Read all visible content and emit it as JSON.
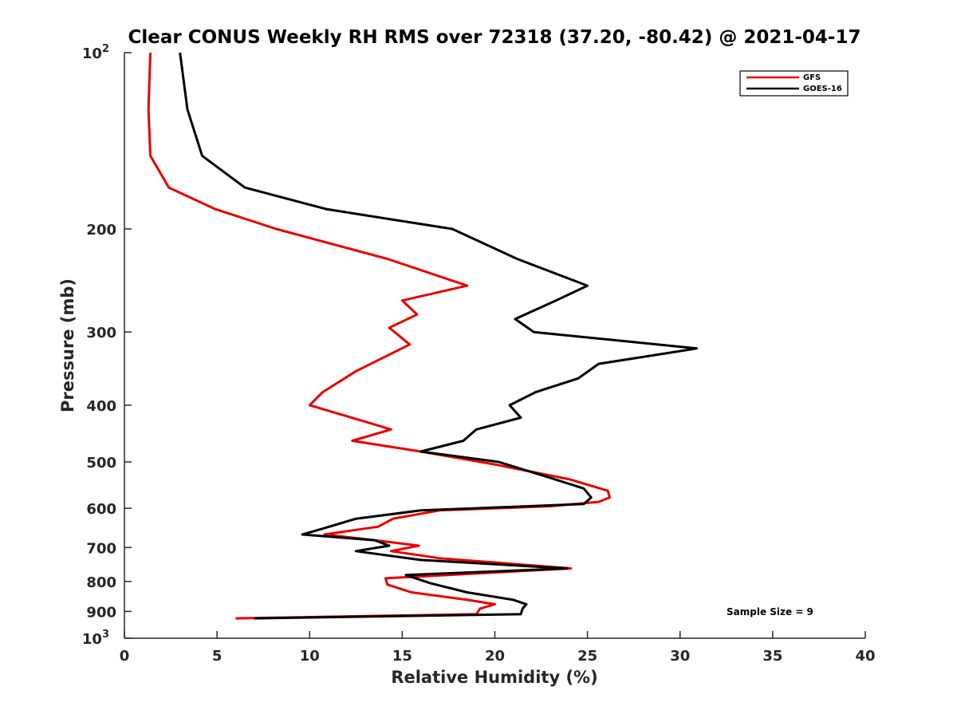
{
  "chart_data": {
    "type": "line",
    "title": "Clear CONUS Weekly RH RMS over 72318 (37.20, -80.42) @ 2021-04-17",
    "xlabel": "Relative Humidity (%)",
    "ylabel": "Pressure (mb)",
    "xlim": [
      0,
      40
    ],
    "ylim": [
      100,
      1000
    ],
    "y_scale": "log",
    "y_reversed": true,
    "x_ticks": [
      "0",
      "5",
      "10",
      "15",
      "20",
      "25",
      "30",
      "35",
      "40"
    ],
    "y_ticks": [
      {
        "value": 100,
        "base": "10",
        "exp": "2"
      },
      {
        "value": 200,
        "label": "200"
      },
      {
        "value": 300,
        "label": "300"
      },
      {
        "value": 400,
        "label": "400"
      },
      {
        "value": 500,
        "label": "500"
      },
      {
        "value": 600,
        "label": "600"
      },
      {
        "value": 700,
        "label": "700"
      },
      {
        "value": 800,
        "label": "800"
      },
      {
        "value": 900,
        "label": "900"
      },
      {
        "value": 1000,
        "base": "10",
        "exp": "3"
      }
    ],
    "grid": false,
    "legend_position": "top-right",
    "annotation": "Sample Size = 9",
    "series": [
      {
        "name": "GFS",
        "color": "#e60000",
        "points": [
          [
            1.4,
            100
          ],
          [
            1.3,
            125
          ],
          [
            1.4,
            150
          ],
          [
            2.4,
            170
          ],
          [
            4.9,
            185
          ],
          [
            8.2,
            200
          ],
          [
            14.2,
            225
          ],
          [
            18.5,
            250
          ],
          [
            15.0,
            265
          ],
          [
            15.8,
            280
          ],
          [
            14.3,
            295
          ],
          [
            15.4,
            315
          ],
          [
            12.5,
            350
          ],
          [
            10.7,
            380
          ],
          [
            10.0,
            400
          ],
          [
            12.8,
            425
          ],
          [
            14.4,
            440
          ],
          [
            12.3,
            460
          ],
          [
            16.0,
            480
          ],
          [
            20.0,
            505
          ],
          [
            24.0,
            535
          ],
          [
            26.1,
            560
          ],
          [
            26.2,
            575
          ],
          [
            25.6,
            585
          ],
          [
            23.0,
            595
          ],
          [
            17.0,
            605
          ],
          [
            14.5,
            625
          ],
          [
            13.7,
            645
          ],
          [
            10.8,
            665
          ],
          [
            13.5,
            680
          ],
          [
            15.9,
            695
          ],
          [
            14.4,
            710
          ],
          [
            17.0,
            730
          ],
          [
            24.1,
            760
          ],
          [
            14.1,
            790
          ],
          [
            14.2,
            810
          ],
          [
            15.5,
            835
          ],
          [
            18.5,
            860
          ],
          [
            20.0,
            875
          ],
          [
            19.2,
            890
          ],
          [
            19.0,
            910
          ],
          [
            6.0,
            925
          ]
        ]
      },
      {
        "name": "GOES-16",
        "color": "#000000",
        "points": [
          [
            3.0,
            100
          ],
          [
            3.4,
            125
          ],
          [
            4.2,
            150
          ],
          [
            6.5,
            170
          ],
          [
            10.9,
            185
          ],
          [
            17.7,
            200
          ],
          [
            21.2,
            225
          ],
          [
            25.0,
            250
          ],
          [
            23.3,
            265
          ],
          [
            21.1,
            285
          ],
          [
            22.1,
            300
          ],
          [
            30.9,
            320
          ],
          [
            25.6,
            340
          ],
          [
            24.5,
            360
          ],
          [
            22.2,
            380
          ],
          [
            20.8,
            400
          ],
          [
            21.4,
            420
          ],
          [
            19.0,
            440
          ],
          [
            18.3,
            460
          ],
          [
            16.0,
            480
          ],
          [
            20.2,
            500
          ],
          [
            22.8,
            530
          ],
          [
            24.8,
            555
          ],
          [
            25.2,
            575
          ],
          [
            24.8,
            590
          ],
          [
            16.0,
            605
          ],
          [
            12.5,
            625
          ],
          [
            10.7,
            650
          ],
          [
            9.6,
            665
          ],
          [
            13.5,
            680
          ],
          [
            14.3,
            695
          ],
          [
            12.5,
            710
          ],
          [
            16.0,
            735
          ],
          [
            23.9,
            760
          ],
          [
            15.2,
            780
          ],
          [
            16.5,
            805
          ],
          [
            18.5,
            835
          ],
          [
            21.0,
            860
          ],
          [
            21.7,
            875
          ],
          [
            21.5,
            890
          ],
          [
            21.4,
            910
          ],
          [
            7.0,
            925
          ]
        ]
      }
    ]
  }
}
